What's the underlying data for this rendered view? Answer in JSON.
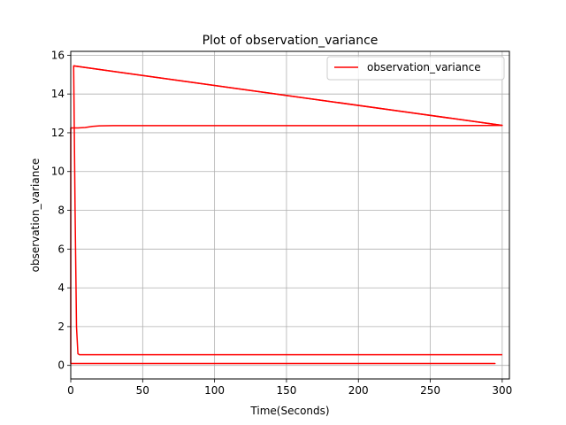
{
  "chart_data": {
    "type": "line",
    "title": "Plot of observation_variance",
    "xlabel": "Time(Seconds)",
    "ylabel": "observation_variance",
    "xlim": [
      0,
      305
    ],
    "ylim": [
      -0.7,
      16.2
    ],
    "xticks": [
      0,
      50,
      100,
      150,
      200,
      250,
      300
    ],
    "yticks": [
      0,
      2,
      4,
      6,
      8,
      10,
      12,
      14,
      16
    ],
    "grid": true,
    "legend_position": "top-right",
    "series": [
      {
        "name": "observation_variance",
        "color": "#ff0000",
        "x": [
          0,
          295,
          295,
          0,
          0,
          5,
          10,
          15,
          20,
          30,
          50,
          100,
          150,
          200,
          250,
          300,
          2,
          3,
          4,
          5,
          6,
          300
        ],
        "y": [
          0.1,
          0.1,
          0.1,
          0.1,
          12.25,
          12.25,
          12.27,
          12.33,
          12.36,
          12.37,
          12.37,
          12.37,
          12.37,
          12.37,
          12.37,
          12.38,
          15.45,
          8,
          2,
          0.6,
          0.55,
          0.55
        ]
      }
    ],
    "extra_segments": [
      {
        "x": [
          2,
          300
        ],
        "y": [
          15.45,
          12.38
        ]
      }
    ]
  }
}
